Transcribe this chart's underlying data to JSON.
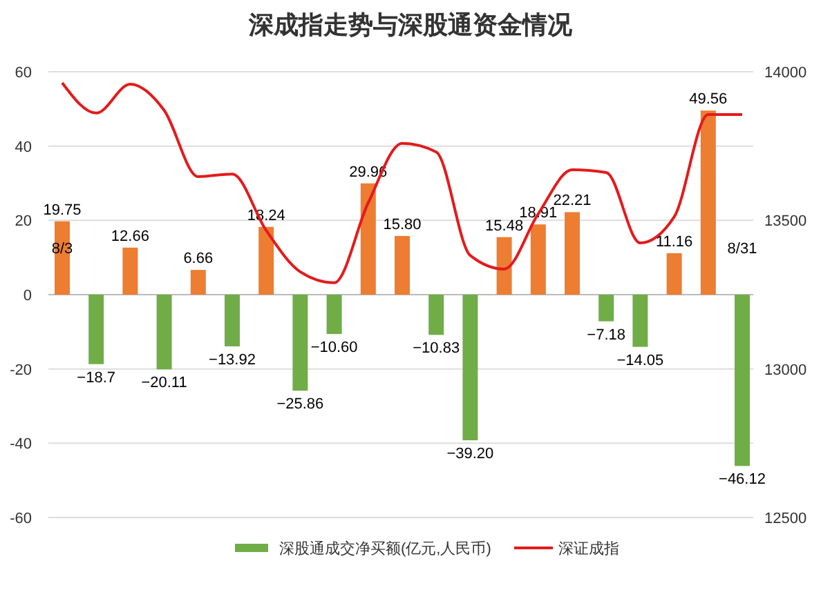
{
  "chart_data": {
    "type": "bar",
    "title": "深成指走势与深股通资金情况",
    "categories": [
      "8/3",
      null,
      null,
      null,
      null,
      null,
      null,
      null,
      null,
      null,
      null,
      null,
      null,
      null,
      null,
      null,
      null,
      null,
      null,
      null,
      "8/31"
    ],
    "series": [
      {
        "name": "深股通成交净买额(亿元,人民币)",
        "color": "#70ad47",
        "values": [
          19.75,
          -18.7,
          12.66,
          -20.11,
          6.66,
          -13.92,
          18.24,
          -25.86,
          -10.6,
          29.96,
          15.8,
          -10.83,
          -39.2,
          15.48,
          18.91,
          22.21,
          -7.18,
          -14.05,
          11.16,
          49.56,
          -46.12
        ],
        "colors": [
          "#ed7d31",
          "#70ad47",
          "#ed7d31",
          "#70ad47",
          "#ed7d31",
          "#70ad47",
          "#ed7d31",
          "#70ad47",
          "#70ad47",
          "#ed7d31",
          "#ed7d31",
          "#70ad47",
          "#70ad47",
          "#ed7d31",
          "#ed7d31",
          "#ed7d31",
          "#70ad47",
          "#70ad47",
          "#ed7d31",
          "#ed7d31",
          "#70ad47"
        ],
        "value_labels": [
          "19.75",
          "−18.7",
          "12.66",
          "−20.11",
          "6.66",
          "−13.92",
          "18.24",
          "−25.86",
          "−10.60",
          "29.96",
          "15.80",
          "−10.83",
          "−39.20",
          "15.48",
          "18.91",
          "22.21",
          "−7.18",
          "−14.05",
          "11.16",
          "49.56",
          "−46.12"
        ]
      },
      {
        "type": "line",
        "name": "深证成指",
        "axis": "y2",
        "color": "#e41a1c",
        "values": [
          13963,
          13861,
          13958,
          13870,
          13647,
          13656,
          13466,
          13327,
          13290,
          13559,
          13759,
          13730,
          13382,
          13336,
          13522,
          13670,
          13661,
          13424,
          13512,
          13856,
          13856
        ]
      }
    ],
    "ylim": [
      -60,
      60
    ],
    "yticks": [
      -60,
      -40,
      -20,
      0,
      20,
      40,
      60
    ],
    "y2lim": [
      12500,
      14000
    ],
    "y2ticks": [
      12500,
      13000,
      13500,
      14000
    ],
    "grid": "y",
    "legend": "bottom",
    "marker": "none",
    "line_style": "solid"
  }
}
